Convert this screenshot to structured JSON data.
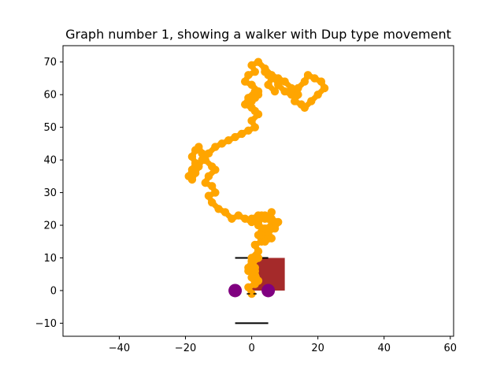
{
  "chart_data": {
    "type": "scatter",
    "title": "Graph number 1, showing a walker with Dup type movement",
    "xlabel": "",
    "ylabel": "",
    "xlim": [
      -57,
      61
    ],
    "ylim": [
      -14,
      75
    ],
    "xticks": [
      -40,
      -20,
      0,
      20,
      40,
      60
    ],
    "yticks": [
      -10,
      0,
      10,
      20,
      30,
      40,
      50,
      60,
      70
    ],
    "grid": false,
    "legend": "none",
    "colors": {
      "walker_path": "#ffa500",
      "start_markers": "#800080",
      "square": "#a52a2a",
      "lines": "#000000"
    },
    "walker_path": {
      "x": [
        0,
        -1,
        1,
        0,
        2,
        1,
        -1,
        0,
        2,
        0,
        -1,
        1,
        0,
        2,
        1,
        3,
        2,
        4,
        3,
        5,
        4,
        6,
        5,
        7,
        8,
        6,
        4,
        2,
        1,
        3,
        2,
        0,
        2,
        4,
        6,
        5,
        7,
        6,
        4,
        2,
        0,
        -2,
        -4,
        -6,
        -8,
        -10,
        -12,
        -13,
        -11,
        -12,
        -14,
        -13,
        -11,
        -12,
        -14,
        -15,
        -16,
        -17,
        -18,
        -17,
        -18,
        -19,
        -18,
        -17,
        -16,
        -15,
        -13,
        -11,
        -9,
        -7,
        -5,
        -3,
        -1,
        1,
        0,
        2,
        1,
        -1,
        0,
        2,
        1,
        -1,
        -2,
        0,
        -1,
        1,
        2,
        0,
        -2,
        -1,
        1,
        0,
        2,
        4,
        6,
        8,
        10,
        12,
        14,
        13,
        15,
        16,
        18,
        20,
        22,
        21,
        19,
        17,
        16,
        14,
        12,
        10,
        8,
        7,
        5,
        4,
        6,
        5,
        7
      ],
      "y": [
        -1,
        1,
        2,
        4,
        3,
        6,
        7,
        9,
        10,
        8,
        6,
        7,
        10,
        12,
        14,
        15,
        17,
        16,
        18,
        17,
        15,
        16,
        18,
        19,
        21,
        20,
        19,
        20,
        22,
        23,
        21,
        22,
        23,
        22,
        24,
        22,
        21,
        22,
        23,
        22,
        21,
        22,
        23,
        22,
        24,
        25,
        27,
        29,
        30,
        32,
        33,
        35,
        37,
        38,
        40,
        42,
        44,
        43,
        41,
        39,
        37,
        35,
        34,
        36,
        38,
        40,
        42,
        44,
        45,
        46,
        47,
        48,
        49,
        50,
        52,
        54,
        55,
        57,
        58,
        60,
        61,
        59,
        57,
        56,
        58,
        59,
        61,
        63,
        64,
        66,
        67,
        69,
        70,
        68,
        66,
        65,
        64,
        62,
        60,
        58,
        57,
        56,
        58,
        60,
        62,
        64,
        65,
        66,
        64,
        62,
        60,
        61,
        63,
        65,
        66,
        67,
        65,
        63,
        61
      ]
    },
    "start_markers": {
      "x": [
        -5,
        5
      ],
      "y": [
        0,
        0
      ]
    },
    "square": {
      "x": [
        0,
        10
      ],
      "y": [
        0,
        10
      ]
    },
    "lines": [
      {
        "x": [
          -5,
          5
        ],
        "y": [
          10,
          10
        ]
      },
      {
        "x": [
          -5,
          5
        ],
        "y": [
          -10,
          -10
        ]
      }
    ],
    "inner_marks": {
      "x": [
        -1,
        1
      ],
      "y": [
        -1,
        -1
      ]
    }
  }
}
